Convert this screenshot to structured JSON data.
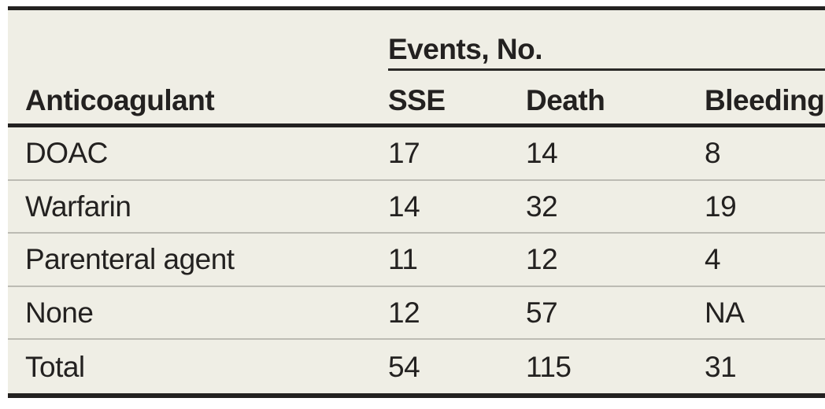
{
  "table": {
    "group_header": "Events, No.",
    "columns": {
      "anticoagulant": "Anticoagulant",
      "sse": "SSE",
      "death": "Death",
      "bleeding": "Bleeding event"
    },
    "rows": [
      {
        "label": "DOAC",
        "sse": "17",
        "death": "14",
        "bleeding": "8"
      },
      {
        "label": "Warfarin",
        "sse": "14",
        "death": "32",
        "bleeding": "19"
      },
      {
        "label": "Parenteral agent",
        "sse": "11",
        "death": "12",
        "bleeding": "4"
      },
      {
        "label": "None",
        "sse": "12",
        "death": "57",
        "bleeding": "NA"
      },
      {
        "label": "Total",
        "sse": "54",
        "death": "115",
        "bleeding": "31"
      }
    ],
    "colors": {
      "table_background": "#efeee5",
      "rule_dark": "#232120",
      "row_separator": "#bcbbb3",
      "text": "#232120"
    }
  }
}
